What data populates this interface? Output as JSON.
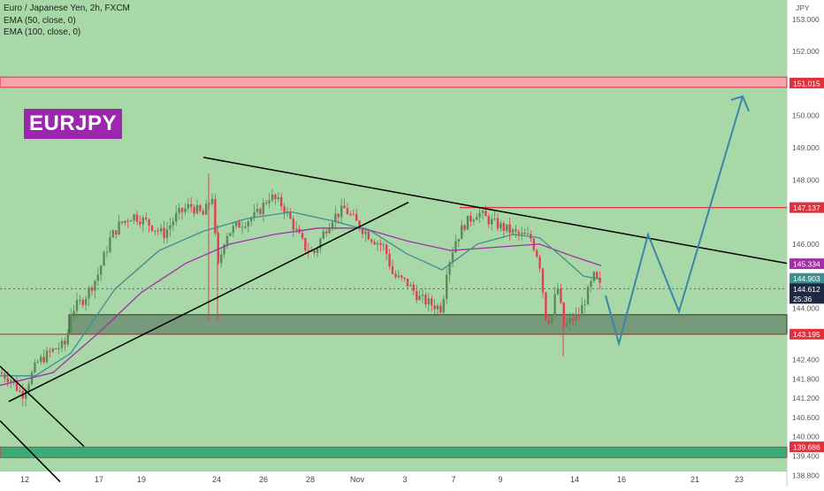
{
  "header": {
    "symbol_line": "Euro / Japanese Yen, 2h, FXCM",
    "ema50_label": "EMA (50, close, 0)",
    "ema100_label": "EMA (100, close, 0)"
  },
  "badge": "EURJPY",
  "colors": {
    "background": "#a8d8a8",
    "up_candle": "#5a8a5a",
    "down_candle": "#e04050",
    "ema50": "#3e8f8f",
    "ema100": "#a22fa8",
    "resistance_line": "#e0303c",
    "projection": "#3a86a8",
    "zone": "#6f8f72",
    "support_zone": "#3daa7a"
  },
  "chart_data": {
    "type": "candlestick",
    "title": "Euro / Japanese Yen, 2h, FXCM",
    "yaxis_unit": "JPY",
    "ylim": [
      138.45,
      153.6
    ],
    "y_ticks": [
      "153.000",
      "152.000",
      "150.000",
      "149.000",
      "148.000",
      "146.000",
      "144.000",
      "142.400",
      "141.800",
      "141.200",
      "140.600",
      "140.000",
      "139.400",
      "138.800"
    ],
    "x_ticks": [
      "12",
      "17",
      "19",
      "24",
      "26",
      "28",
      "Nov",
      "3",
      "7",
      "9",
      "14",
      "16",
      "21",
      "23"
    ],
    "price_labels": [
      {
        "text": "151.015",
        "value": 151.015,
        "color": "#e0303c"
      },
      {
        "text": "147.137",
        "value": 147.137,
        "color": "#e0303c"
      },
      {
        "text": "145.334",
        "value": 145.334,
        "color": "#a22fa8"
      },
      {
        "text": "144.903",
        "value": 144.903,
        "color": "#3e8f8f"
      },
      {
        "text": "144.612",
        "value": 144.612,
        "color": "#1e2a44"
      },
      {
        "text": "25:36",
        "value": 144.35,
        "color": "#1e2a44"
      },
      {
        "text": "143.195",
        "value": 143.195,
        "color": "#e0303c"
      },
      {
        "text": "139.686",
        "value": 139.686,
        "color": "#e0303c"
      }
    ],
    "levels": [
      151.015,
      147.137,
      143.195,
      139.686
    ],
    "last_price": 144.612,
    "close_path": [
      {
        "x": 0,
        "y": 142.0
      },
      {
        "x": 12,
        "y": 141.8
      },
      {
        "x": 25,
        "y": 141.3
      },
      {
        "x": 42,
        "y": 142.3
      },
      {
        "x": 60,
        "y": 142.7
      },
      {
        "x": 75,
        "y": 142.9
      },
      {
        "x": 80,
        "y": 143.9
      },
      {
        "x": 95,
        "y": 144.3
      },
      {
        "x": 110,
        "y": 145.0
      },
      {
        "x": 125,
        "y": 146.2
      },
      {
        "x": 135,
        "y": 146.6
      },
      {
        "x": 150,
        "y": 146.9
      },
      {
        "x": 165,
        "y": 146.7
      },
      {
        "x": 185,
        "y": 146.3
      },
      {
        "x": 200,
        "y": 146.9
      },
      {
        "x": 215,
        "y": 147.2
      },
      {
        "x": 230,
        "y": 146.9
      },
      {
        "x": 240,
        "y": 147.5
      },
      {
        "x": 246,
        "y": 145.2
      },
      {
        "x": 255,
        "y": 146.3
      },
      {
        "x": 270,
        "y": 146.6
      },
      {
        "x": 290,
        "y": 146.9
      },
      {
        "x": 305,
        "y": 147.5
      },
      {
        "x": 320,
        "y": 147.2
      },
      {
        "x": 335,
        "y": 146.4
      },
      {
        "x": 345,
        "y": 145.9
      },
      {
        "x": 355,
        "y": 145.7
      },
      {
        "x": 365,
        "y": 146.3
      },
      {
        "x": 375,
        "y": 146.8
      },
      {
        "x": 390,
        "y": 147.1
      },
      {
        "x": 405,
        "y": 146.6
      },
      {
        "x": 420,
        "y": 146.2
      },
      {
        "x": 435,
        "y": 145.9
      },
      {
        "x": 445,
        "y": 145.0
      },
      {
        "x": 460,
        "y": 144.8
      },
      {
        "x": 475,
        "y": 144.3
      },
      {
        "x": 490,
        "y": 144.1
      },
      {
        "x": 500,
        "y": 144.0
      },
      {
        "x": 505,
        "y": 145.2
      },
      {
        "x": 515,
        "y": 146.1
      },
      {
        "x": 525,
        "y": 146.6
      },
      {
        "x": 540,
        "y": 147.0
      },
      {
        "x": 555,
        "y": 146.7
      },
      {
        "x": 570,
        "y": 146.5
      },
      {
        "x": 585,
        "y": 146.3
      },
      {
        "x": 600,
        "y": 146.2
      },
      {
        "x": 610,
        "y": 145.5
      },
      {
        "x": 618,
        "y": 143.6
      },
      {
        "x": 625,
        "y": 143.8
      },
      {
        "x": 630,
        "y": 144.8
      },
      {
        "x": 638,
        "y": 143.4
      },
      {
        "x": 645,
        "y": 143.6
      },
      {
        "x": 655,
        "y": 143.8
      },
      {
        "x": 665,
        "y": 144.5
      },
      {
        "x": 672,
        "y": 145.0
      },
      {
        "x": 680,
        "y": 144.61
      }
    ],
    "ema50": [
      {
        "x": 0,
        "y": 141.9
      },
      {
        "x": 40,
        "y": 141.9
      },
      {
        "x": 80,
        "y": 142.6
      },
      {
        "x": 130,
        "y": 144.6
      },
      {
        "x": 180,
        "y": 145.8
      },
      {
        "x": 230,
        "y": 146.4
      },
      {
        "x": 280,
        "y": 146.8
      },
      {
        "x": 330,
        "y": 147.0
      },
      {
        "x": 380,
        "y": 146.7
      },
      {
        "x": 420,
        "y": 146.4
      },
      {
        "x": 460,
        "y": 145.7
      },
      {
        "x": 500,
        "y": 145.2
      },
      {
        "x": 540,
        "y": 146.0
      },
      {
        "x": 580,
        "y": 146.3
      },
      {
        "x": 610,
        "y": 146.2
      },
      {
        "x": 640,
        "y": 145.5
      },
      {
        "x": 660,
        "y": 145.0
      },
      {
        "x": 680,
        "y": 144.9
      }
    ],
    "ema100": [
      {
        "x": 0,
        "y": 141.6
      },
      {
        "x": 60,
        "y": 142.0
      },
      {
        "x": 110,
        "y": 143.2
      },
      {
        "x": 160,
        "y": 144.5
      },
      {
        "x": 210,
        "y": 145.4
      },
      {
        "x": 260,
        "y": 146.0
      },
      {
        "x": 310,
        "y": 146.3
      },
      {
        "x": 360,
        "y": 146.5
      },
      {
        "x": 410,
        "y": 146.5
      },
      {
        "x": 460,
        "y": 146.1
      },
      {
        "x": 510,
        "y": 145.8
      },
      {
        "x": 560,
        "y": 145.9
      },
      {
        "x": 610,
        "y": 146.0
      },
      {
        "x": 650,
        "y": 145.6
      },
      {
        "x": 680,
        "y": 145.33
      }
    ],
    "projection": [
      {
        "x": 685,
        "y": 144.4
      },
      {
        "x": 700,
        "y": 142.9
      },
      {
        "x": 733,
        "y": 146.3
      },
      {
        "x": 768,
        "y": 143.9
      },
      {
        "x": 840,
        "y": 150.6
      }
    ]
  }
}
